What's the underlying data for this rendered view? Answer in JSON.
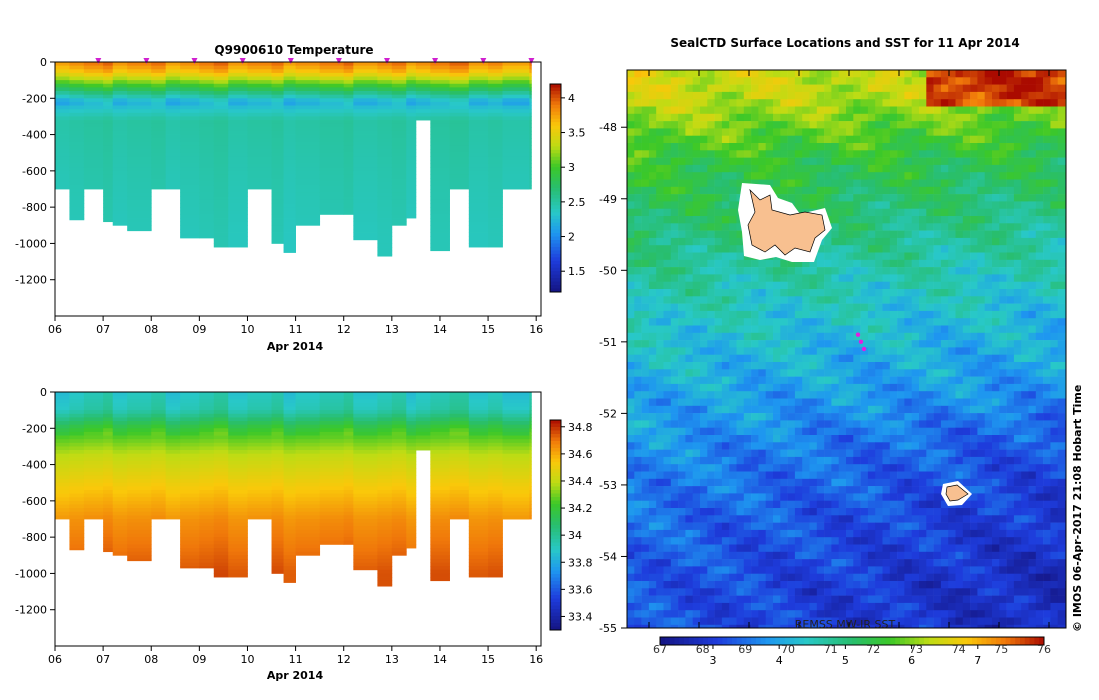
{
  "panels": {
    "temperature": {
      "title": "Q9900610  Temperature",
      "xlabel": "Apr 2014",
      "y_ticks": [
        "0",
        "-200",
        "-400",
        "-600",
        "-800",
        "-1000",
        "-1200"
      ],
      "x_ticks": [
        "06",
        "07",
        "08",
        "09",
        "10",
        "11",
        "12",
        "13",
        "14",
        "15",
        "16"
      ],
      "colorbar_ticks": [
        "4",
        "3.5",
        "3",
        "2.5",
        "2",
        "1.5"
      ]
    },
    "salinity": {
      "title": "",
      "xlabel": "Apr 2014",
      "y_ticks": [
        "0",
        "-200",
        "-400",
        "-600",
        "-800",
        "-1000",
        "-1200"
      ],
      "x_ticks": [
        "06",
        "07",
        "08",
        "09",
        "10",
        "11",
        "12",
        "13",
        "14",
        "15",
        "16"
      ],
      "colorbar_ticks": [
        "34.8",
        "34.6",
        "34.4",
        "34.2",
        "34",
        "33.8",
        "33.6",
        "33.4"
      ]
    },
    "map": {
      "title": "SealCTD Surface Locations and SST for 11 Apr 2014",
      "lat_ticks": [
        "-48",
        "-49",
        "-50",
        "-51",
        "-52",
        "-53",
        "-54",
        "-55"
      ],
      "colorbar_label": "REMSS MW-IR SST",
      "colorbar_top_ticks": [
        "67",
        "68",
        "69",
        "70",
        "71",
        "72",
        "73",
        "74",
        "75",
        "76"
      ],
      "colorbar_bottom_ticks": [
        "3",
        "4",
        "5",
        "6",
        "7"
      ],
      "side_text": "© IMOS 06-Apr-2017 21:08 Hobart Time"
    }
  },
  "chart_data": [
    {
      "type": "heatmap",
      "title": "Q9900610  Temperature",
      "xlabel": "Apr 2014",
      "ylabel": "",
      "x_range": [
        6.0,
        16.1
      ],
      "ylim": [
        -1400,
        0
      ],
      "colorbar_range": [
        1.2,
        4.2
      ],
      "colors": {
        "low": "#1e1e8c",
        "mid": "#28c878",
        "high": "#dc3c00"
      },
      "profile_times": [
        6.0,
        6.3,
        6.6,
        7.0,
        7.2,
        7.5,
        8.0,
        8.3,
        8.6,
        9.0,
        9.3,
        9.6,
        10.0,
        10.5,
        10.75,
        11.0,
        11.5,
        12.0,
        12.2,
        12.7,
        13.0,
        13.3,
        13.5,
        13.8,
        14.2,
        14.6,
        15.0,
        15.3,
        15.9
      ],
      "profile_max_depth": [
        -700,
        -870,
        -700,
        -880,
        -900,
        -930,
        -700,
        -700,
        -970,
        -970,
        -1020,
        -1020,
        -700,
        -1000,
        -1050,
        -900,
        -840,
        -840,
        -980,
        -1070,
        -900,
        -860,
        -320,
        -1040,
        -700,
        -1020,
        -1020,
        -700,
        -700
      ],
      "water_column_values": [
        {
          "depth": 0,
          "value": 3.9
        },
        {
          "depth": -60,
          "value": 3.6
        },
        {
          "depth": -150,
          "value": 2.8
        },
        {
          "depth": -220,
          "value": 2.2
        },
        {
          "depth": -320,
          "value": 2.5
        },
        {
          "depth": -600,
          "value": 2.45
        },
        {
          "depth": -1000,
          "value": 2.4
        }
      ],
      "surface_profile_markers": [
        6.9,
        7.9,
        8.9,
        9.9,
        10.9,
        11.9,
        12.9,
        13.9,
        14.9,
        15.9
      ]
    },
    {
      "type": "heatmap",
      "title": "",
      "xlabel": "Apr 2014",
      "ylabel": "",
      "x_range": [
        6.0,
        16.1
      ],
      "ylim": [
        -1400,
        0
      ],
      "colorbar_range": [
        33.3,
        34.85
      ],
      "water_column_values": [
        {
          "depth": 0,
          "value": 33.9
        },
        {
          "depth": -100,
          "value": 33.95
        },
        {
          "depth": -200,
          "value": 34.2
        },
        {
          "depth": -350,
          "value": 34.4
        },
        {
          "depth": -550,
          "value": 34.55
        },
        {
          "depth": -700,
          "value": 34.65
        },
        {
          "depth": -1000,
          "value": 34.75
        }
      ]
    },
    {
      "type": "heatmap",
      "title": "SealCTD Surface Locations and SST for 11 Apr 2014",
      "ylabel": "",
      "ylim": [
        -55,
        -47.2
      ],
      "colorbar_label": "REMSS MW-IR SST",
      "colorbar_range_c": [
        2.2,
        8.0
      ],
      "colorbar_range_f": [
        67,
        76
      ],
      "latitude_sst_c": [
        {
          "lat": -47.5,
          "sst": 6.3
        },
        {
          "lat": -48.5,
          "sst": 5.4
        },
        {
          "lat": -49.5,
          "sst": 4.9
        },
        {
          "lat": -50.5,
          "sst": 4.4
        },
        {
          "lat": -51.5,
          "sst": 4.0
        },
        {
          "lat": -52.5,
          "sst": 3.5
        },
        {
          "lat": -53.5,
          "sst": 3.2
        },
        {
          "lat": -54.5,
          "sst": 3.0
        }
      ],
      "surface_locations_lat": [
        -50.9,
        -51.0,
        -51.1
      ]
    }
  ]
}
